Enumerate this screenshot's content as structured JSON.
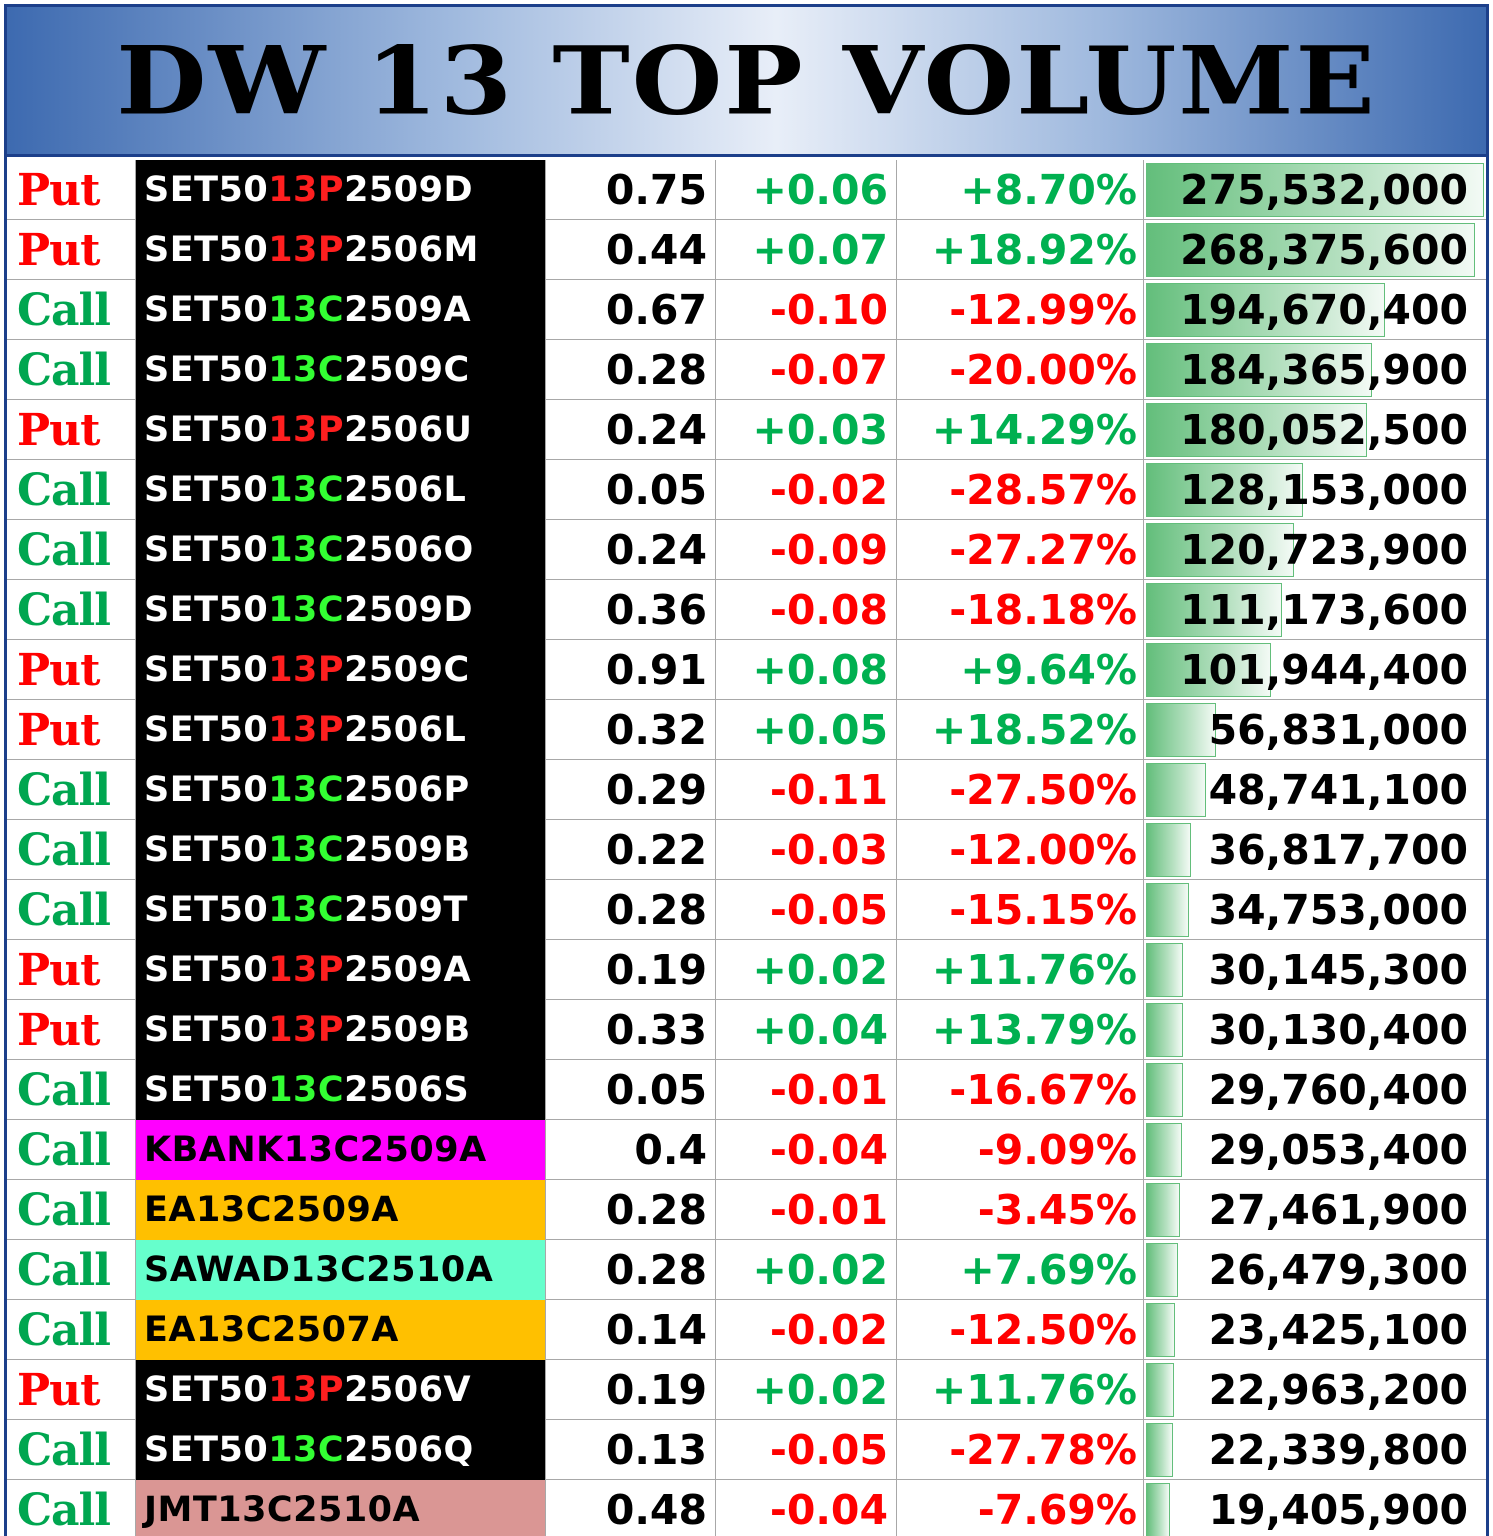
{
  "title": "DW 13 TOP VOLUME",
  "colors": {
    "put": "#ff0000",
    "call": "#00a650",
    "positive": "#00b050",
    "negative": "#ff0000",
    "volume_bar": "#63be7b",
    "header_blue": "#3d6ab0"
  },
  "max_volume": 275532000,
  "rows": [
    {
      "type": "Put",
      "name_prefix": "SET50",
      "name_mid": "13P",
      "name_suffix": "2509D",
      "name_bg": "#000000",
      "name_color": "#ffffff",
      "price": "0.75",
      "change": "+0.06",
      "pct": "+8.70%",
      "volume": "275,532,000",
      "volume_value": 275532000
    },
    {
      "type": "Put",
      "name_prefix": "SET50",
      "name_mid": "13P",
      "name_suffix": "2506M",
      "name_bg": "#000000",
      "name_color": "#ffffff",
      "price": "0.44",
      "change": "+0.07",
      "pct": "+18.92%",
      "volume": "268,375,600",
      "volume_value": 268375600
    },
    {
      "type": "Call",
      "name_prefix": "SET50",
      "name_mid": "13C",
      "name_suffix": "2509A",
      "name_bg": "#000000",
      "name_color": "#ffffff",
      "price": "0.67",
      "change": "-0.10",
      "pct": "-12.99%",
      "volume": "194,670,400",
      "volume_value": 194670400
    },
    {
      "type": "Call",
      "name_prefix": "SET50",
      "name_mid": "13C",
      "name_suffix": "2509C",
      "name_bg": "#000000",
      "name_color": "#ffffff",
      "price": "0.28",
      "change": "-0.07",
      "pct": "-20.00%",
      "volume": "184,365,900",
      "volume_value": 184365900
    },
    {
      "type": "Put",
      "name_prefix": "SET50",
      "name_mid": "13P",
      "name_suffix": "2506U",
      "name_bg": "#000000",
      "name_color": "#ffffff",
      "price": "0.24",
      "change": "+0.03",
      "pct": "+14.29%",
      "volume": "180,052,500",
      "volume_value": 180052500
    },
    {
      "type": "Call",
      "name_prefix": "SET50",
      "name_mid": "13C",
      "name_suffix": "2506L",
      "name_bg": "#000000",
      "name_color": "#ffffff",
      "price": "0.05",
      "change": "-0.02",
      "pct": "-28.57%",
      "volume": "128,153,000",
      "volume_value": 128153000
    },
    {
      "type": "Call",
      "name_prefix": "SET50",
      "name_mid": "13C",
      "name_suffix": "2506O",
      "name_bg": "#000000",
      "name_color": "#ffffff",
      "price": "0.24",
      "change": "-0.09",
      "pct": "-27.27%",
      "volume": "120,723,900",
      "volume_value": 120723900
    },
    {
      "type": "Call",
      "name_prefix": "SET50",
      "name_mid": "13C",
      "name_suffix": "2509D",
      "name_bg": "#000000",
      "name_color": "#ffffff",
      "price": "0.36",
      "change": "-0.08",
      "pct": "-18.18%",
      "volume": "111,173,600",
      "volume_value": 111173600
    },
    {
      "type": "Put",
      "name_prefix": "SET50",
      "name_mid": "13P",
      "name_suffix": "2509C",
      "name_bg": "#000000",
      "name_color": "#ffffff",
      "price": "0.91",
      "change": "+0.08",
      "pct": "+9.64%",
      "volume": "101,944,400",
      "volume_value": 101944400
    },
    {
      "type": "Put",
      "name_prefix": "SET50",
      "name_mid": "13P",
      "name_suffix": "2506L",
      "name_bg": "#000000",
      "name_color": "#ffffff",
      "price": "0.32",
      "change": "+0.05",
      "pct": "+18.52%",
      "volume": "56,831,000",
      "volume_value": 56831000
    },
    {
      "type": "Call",
      "name_prefix": "SET50",
      "name_mid": "13C",
      "name_suffix": "2506P",
      "name_bg": "#000000",
      "name_color": "#ffffff",
      "price": "0.29",
      "change": "-0.11",
      "pct": "-27.50%",
      "volume": "48,741,100",
      "volume_value": 48741100
    },
    {
      "type": "Call",
      "name_prefix": "SET50",
      "name_mid": "13C",
      "name_suffix": "2509B",
      "name_bg": "#000000",
      "name_color": "#ffffff",
      "price": "0.22",
      "change": "-0.03",
      "pct": "-12.00%",
      "volume": "36,817,700",
      "volume_value": 36817700
    },
    {
      "type": "Call",
      "name_prefix": "SET50",
      "name_mid": "13C",
      "name_suffix": "2509T",
      "name_bg": "#000000",
      "name_color": "#ffffff",
      "price": "0.28",
      "change": "-0.05",
      "pct": "-15.15%",
      "volume": "34,753,000",
      "volume_value": 34753000
    },
    {
      "type": "Put",
      "name_prefix": "SET50",
      "name_mid": "13P",
      "name_suffix": "2509A",
      "name_bg": "#000000",
      "name_color": "#ffffff",
      "price": "0.19",
      "change": "+0.02",
      "pct": "+11.76%",
      "volume": "30,145,300",
      "volume_value": 30145300
    },
    {
      "type": "Put",
      "name_prefix": "SET50",
      "name_mid": "13P",
      "name_suffix": "2509B",
      "name_bg": "#000000",
      "name_color": "#ffffff",
      "price": "0.33",
      "change": "+0.04",
      "pct": "+13.79%",
      "volume": "30,130,400",
      "volume_value": 30130400
    },
    {
      "type": "Call",
      "name_prefix": "SET50",
      "name_mid": "13C",
      "name_suffix": "2506S",
      "name_bg": "#000000",
      "name_color": "#ffffff",
      "price": "0.05",
      "change": "-0.01",
      "pct": "-16.67%",
      "volume": "29,760,400",
      "volume_value": 29760400
    },
    {
      "type": "Call",
      "name_prefix": "KBANK13C2509A",
      "name_mid": "",
      "name_suffix": "",
      "name_bg": "#ff00ff",
      "name_color": "#000000",
      "price": "0.4",
      "change": "-0.04",
      "pct": "-9.09%",
      "volume": "29,053,400",
      "volume_value": 29053400
    },
    {
      "type": "Call",
      "name_prefix": "EA13C2509A",
      "name_mid": "",
      "name_suffix": "",
      "name_bg": "#ffc000",
      "name_color": "#000000",
      "price": "0.28",
      "change": "-0.01",
      "pct": "-3.45%",
      "volume": "27,461,900",
      "volume_value": 27461900
    },
    {
      "type": "Call",
      "name_prefix": "SAWAD13C2510A",
      "name_mid": "",
      "name_suffix": "",
      "name_bg": "#66ffcc",
      "name_color": "#000000",
      "price": "0.28",
      "change": "+0.02",
      "pct": "+7.69%",
      "volume": "26,479,300",
      "volume_value": 26479300
    },
    {
      "type": "Call",
      "name_prefix": "EA13C2507A",
      "name_mid": "",
      "name_suffix": "",
      "name_bg": "#ffc000",
      "name_color": "#000000",
      "price": "0.14",
      "change": "-0.02",
      "pct": "-12.50%",
      "volume": "23,425,100",
      "volume_value": 23425100
    },
    {
      "type": "Put",
      "name_prefix": "SET50",
      "name_mid": "13P",
      "name_suffix": "2506V",
      "name_bg": "#000000",
      "name_color": "#ffffff",
      "price": "0.19",
      "change": "+0.02",
      "pct": "+11.76%",
      "volume": "22,963,200",
      "volume_value": 22963200
    },
    {
      "type": "Call",
      "name_prefix": "SET50",
      "name_mid": "13C",
      "name_suffix": "2506Q",
      "name_bg": "#000000",
      "name_color": "#ffffff",
      "price": "0.13",
      "change": "-0.05",
      "pct": "-27.78%",
      "volume": "22,339,800",
      "volume_value": 22339800
    },
    {
      "type": "Call",
      "name_prefix": "JMT13C2510A",
      "name_mid": "",
      "name_suffix": "",
      "name_bg": "#da9694",
      "name_color": "#000000",
      "price": "0.48",
      "change": "-0.04",
      "pct": "-7.69%",
      "volume": "19,405,900",
      "volume_value": 19405900
    }
  ]
}
